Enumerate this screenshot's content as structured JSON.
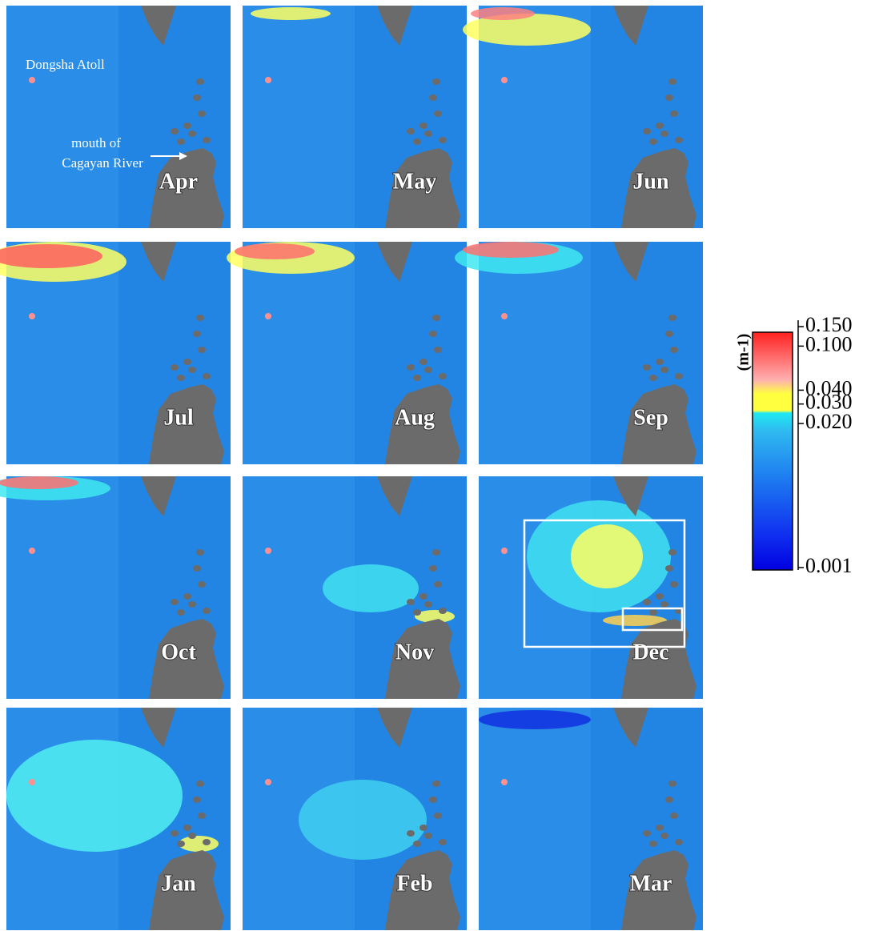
{
  "panels": [
    {
      "label": "Apr"
    },
    {
      "label": "May"
    },
    {
      "label": "Jun"
    },
    {
      "label": "Jul"
    },
    {
      "label": "Aug"
    },
    {
      "label": "Sep"
    },
    {
      "label": "Oct"
    },
    {
      "label": "Nov"
    },
    {
      "label": "Dec"
    },
    {
      "label": "Jan"
    },
    {
      "label": "Feb"
    },
    {
      "label": "Mar"
    }
  ],
  "annotations": {
    "atoll": "Dongsha Atoll",
    "river": [
      "mouth of",
      "Cagayan River"
    ]
  },
  "colorbar": {
    "unit_label": "(m-1)",
    "log_scale": true,
    "ticks": [
      {
        "value": 0.15,
        "label": "0.150"
      },
      {
        "value": 0.1,
        "label": "0.100"
      },
      {
        "value": 0.04,
        "label": "0.040"
      },
      {
        "value": 0.03,
        "label": "0.030"
      },
      {
        "value": 0.02,
        "label": "0.020"
      },
      {
        "value": 0.001,
        "label": "0.001"
      }
    ]
  }
}
